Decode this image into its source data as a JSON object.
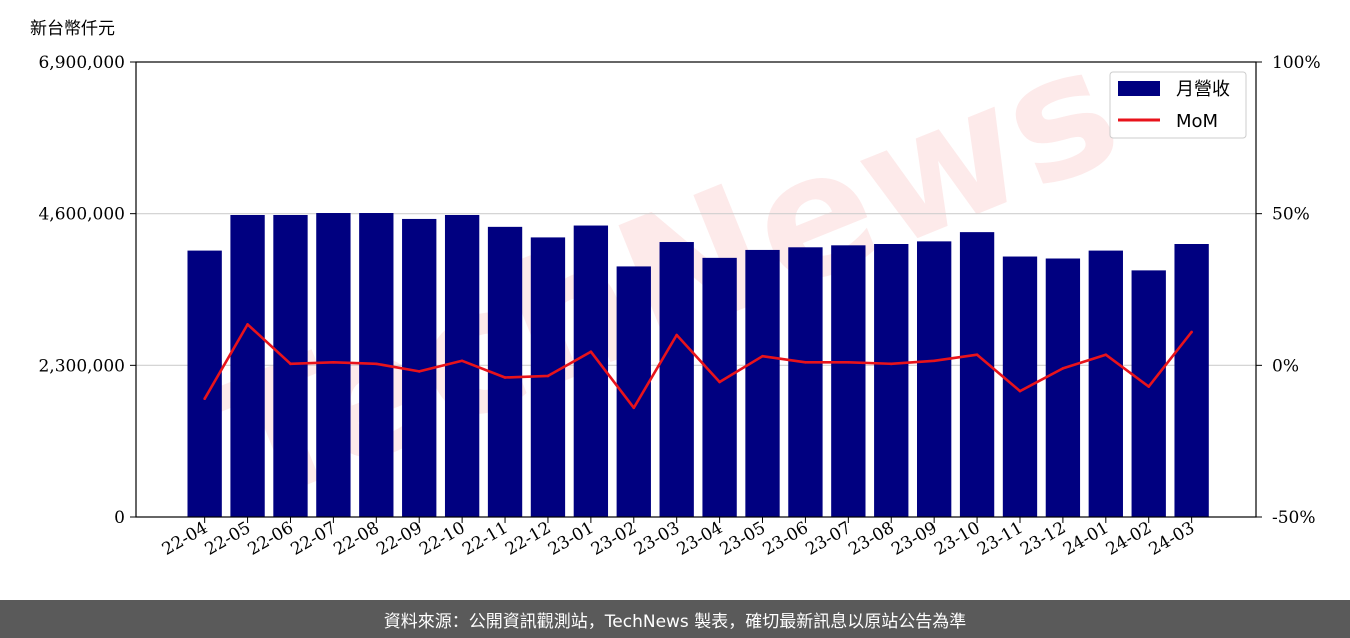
{
  "chart_data": {
    "type": "bar",
    "unit_label": "新台幣仟元",
    "categories": [
      "22-04",
      "22-05",
      "22-06",
      "22-07",
      "22-08",
      "22-09",
      "22-10",
      "22-11",
      "22-12",
      "23-01",
      "23-02",
      "23-03",
      "23-04",
      "23-05",
      "23-06",
      "23-07",
      "23-08",
      "23-09",
      "23-10",
      "23-11",
      "23-12",
      "24-01",
      "24-02",
      "24-03"
    ],
    "series": [
      {
        "name": "月營收",
        "type": "bar",
        "axis": "left",
        "color": "#000080",
        "values": [
          4040000,
          4580000,
          4580000,
          4610000,
          4610000,
          4520000,
          4580000,
          4400000,
          4240000,
          4420000,
          3800000,
          4170000,
          3930000,
          4050000,
          4090000,
          4120000,
          4140000,
          4180000,
          4320000,
          3950000,
          3920000,
          4040000,
          3740000,
          4140000
        ]
      },
      {
        "name": "MoM",
        "type": "line",
        "axis": "right",
        "color": "#e8131b",
        "values": [
          -11,
          13.5,
          0.5,
          1,
          0.5,
          -2,
          1.5,
          -4,
          -3.5,
          4.5,
          -14,
          10,
          -5.5,
          3,
          1,
          1,
          0.5,
          1.5,
          3.5,
          -8.5,
          -1,
          3.5,
          -7,
          11
        ]
      }
    ],
    "left_axis": {
      "ylim": [
        0,
        6900000
      ],
      "ticks": [
        0,
        2300000,
        4600000,
        6900000
      ],
      "tick_labels": [
        "0",
        "2,300,000",
        "4,600,000",
        "6,900,000"
      ]
    },
    "right_axis": {
      "ylim": [
        -50,
        100
      ],
      "ticks": [
        -50,
        0,
        50,
        100
      ],
      "tick_labels": [
        "-50%",
        "0%",
        "50%",
        "100%"
      ]
    },
    "grid": "horizontal",
    "legend": {
      "placement": "top-right",
      "entries": [
        "月營收",
        "MoM"
      ]
    }
  },
  "watermark": {
    "text": "TechNews",
    "color": "#e8131b"
  },
  "footer": {
    "text": "資料來源：公開資訊觀測站，TechNews 製表，確切最新訊息以原站公告為準"
  }
}
